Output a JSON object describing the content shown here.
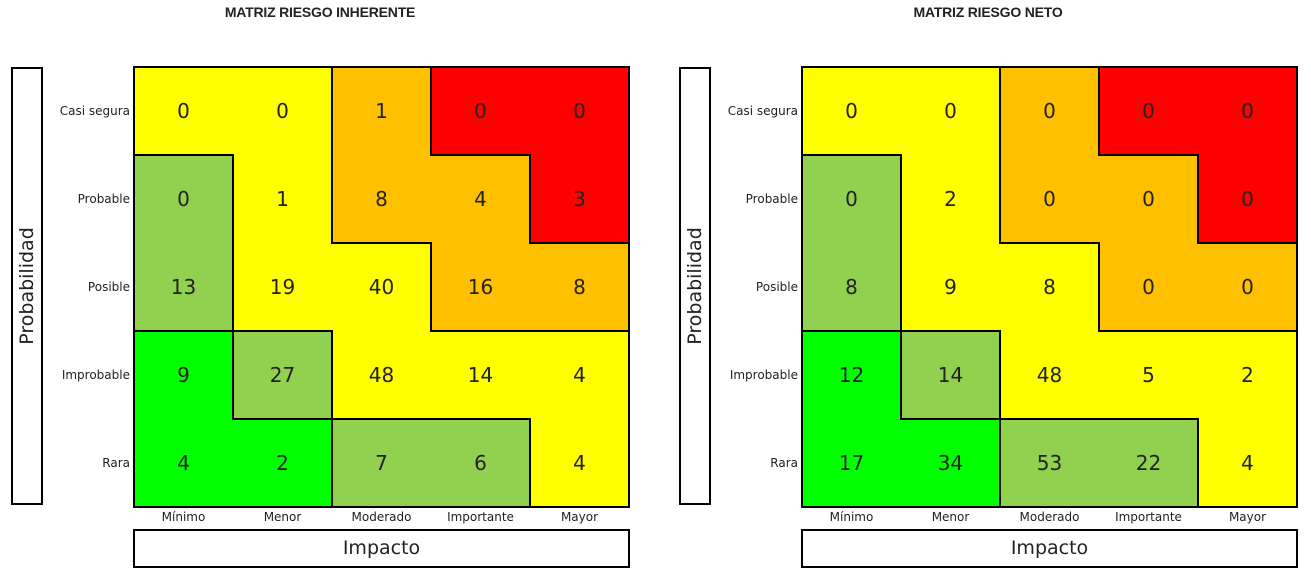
{
  "colors": {
    "red": "#ff0000",
    "orange": "#ffc000",
    "yellow": "#ffff00",
    "olive": "#92d050",
    "green": "#00ff00"
  },
  "chart_data": [
    {
      "type": "heatmap",
      "title": "MATRIZ RIESGO INHERENTE",
      "xlabel": "Impacto",
      "ylabel": "Probabilidad",
      "x_categories": [
        "Mínimo",
        "Menor",
        "Moderado",
        "Importante",
        "Mayor"
      ],
      "y_categories": [
        "Casi segura",
        "Probable",
        "Posible",
        "Improbable",
        "Rara"
      ],
      "values": [
        [
          0,
          0,
          1,
          0,
          0
        ],
        [
          0,
          1,
          8,
          4,
          3
        ],
        [
          13,
          19,
          40,
          16,
          8
        ],
        [
          9,
          27,
          48,
          14,
          4
        ],
        [
          4,
          2,
          7,
          6,
          4
        ]
      ],
      "colors": [
        [
          "yellow",
          "yellow",
          "orange",
          "red",
          "red"
        ],
        [
          "olive",
          "yellow",
          "orange",
          "orange",
          "red"
        ],
        [
          "olive",
          "yellow",
          "yellow",
          "orange",
          "orange"
        ],
        [
          "green",
          "olive",
          "yellow",
          "yellow",
          "yellow"
        ],
        [
          "green",
          "green",
          "olive",
          "olive",
          "yellow"
        ]
      ]
    },
    {
      "type": "heatmap",
      "title": "MATRIZ RIESGO NETO",
      "xlabel": "Impacto",
      "ylabel": "Probabilidad",
      "x_categories": [
        "Mínimo",
        "Menor",
        "Moderado",
        "Importante",
        "Mayor"
      ],
      "y_categories": [
        "Casi segura",
        "Probable",
        "Posible",
        "Improbable",
        "Rara"
      ],
      "values": [
        [
          0,
          0,
          0,
          0,
          0
        ],
        [
          0,
          2,
          0,
          0,
          0
        ],
        [
          8,
          9,
          8,
          0,
          0
        ],
        [
          12,
          14,
          48,
          5,
          2
        ],
        [
          17,
          34,
          53,
          22,
          4
        ]
      ],
      "colors": [
        [
          "yellow",
          "yellow",
          "orange",
          "red",
          "red"
        ],
        [
          "olive",
          "yellow",
          "orange",
          "orange",
          "red"
        ],
        [
          "olive",
          "yellow",
          "yellow",
          "orange",
          "orange"
        ],
        [
          "green",
          "olive",
          "yellow",
          "yellow",
          "yellow"
        ],
        [
          "green",
          "green",
          "olive",
          "olive",
          "yellow"
        ]
      ]
    }
  ]
}
